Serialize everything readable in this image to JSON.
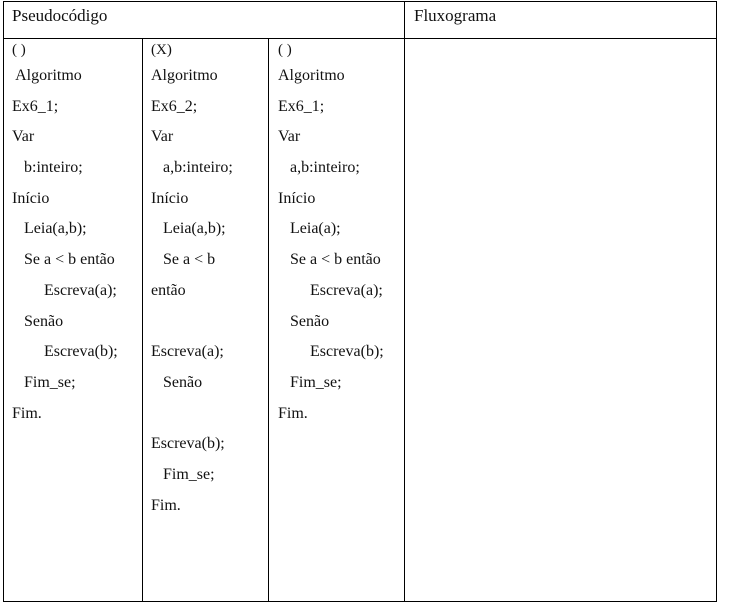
{
  "header": {
    "pseudo_title": "Pseudocódigo",
    "flow_title": "Fluxograma"
  },
  "columns": [
    {
      "marker": "( )",
      "lines": [
        " Algoritmo",
        "Ex6_1;",
        "Var",
        "   b:inteiro;",
        "Início",
        "   Leia(a,b);",
        "   Se a < b então",
        "        Escreva(a);",
        "   Senão",
        "        Escreva(b);",
        "   Fim_se;",
        "Fim."
      ]
    },
    {
      "marker": "(X)",
      "lines": [
        "Algoritmo",
        "Ex6_2;",
        "Var",
        "   a,b:inteiro;",
        "Início",
        "   Leia(a,b);",
        "   Se a < b",
        "então",
        "",
        "Escreva(a);",
        "   Senão",
        "",
        "Escreva(b);",
        "   Fim_se;",
        "Fim."
      ]
    },
    {
      "marker": "( )",
      "lines": [
        "Algoritmo",
        "Ex6_1;",
        "Var",
        "   a,b:inteiro;",
        "Início",
        "   Leia(a);",
        "   Se a < b então",
        "        Escreva(a);",
        "   Senão",
        "        Escreva(b);",
        "   Fim_se;",
        "Fim."
      ]
    }
  ]
}
